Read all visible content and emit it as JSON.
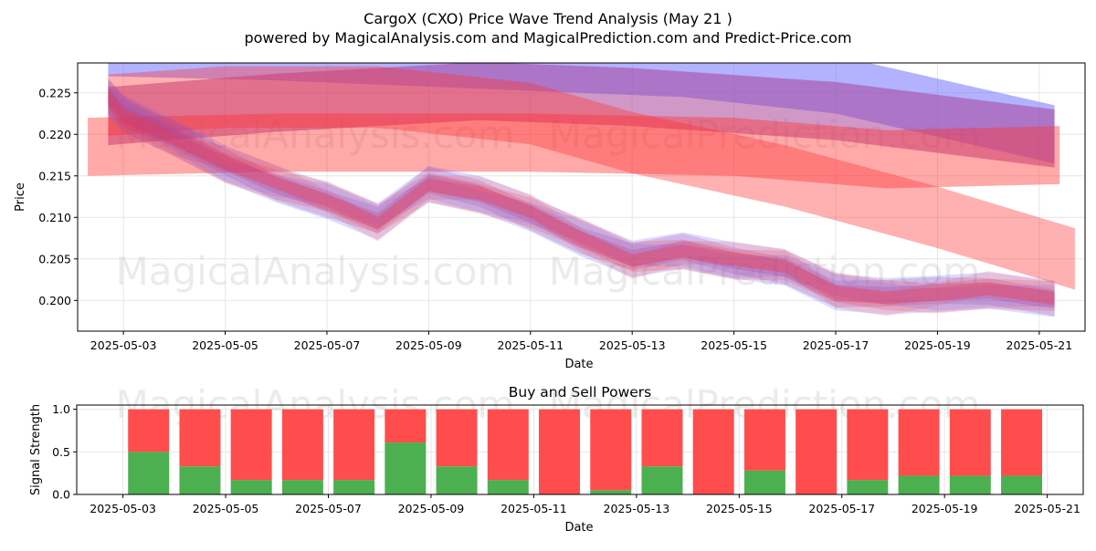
{
  "header": {
    "title": "CargoX (CXO) Price Wave Trend Analysis (May 21 )",
    "subtitle": "powered by MagicalAnalysis.com and MagicalPrediction.com and Predict-Price.com"
  },
  "watermarks": [
    "MagicalAnalysis.com",
    "MagicalPrediction.com"
  ],
  "colors": {
    "blue_band": "#6666ff",
    "red_band": "#ff3333",
    "purple_band": "#aa4499",
    "buy": "#4caf50",
    "sell": "#ff4d4d",
    "grid": "#e6e6e6"
  },
  "chart_data": [
    {
      "type": "line",
      "title": "",
      "xlabel": "Date",
      "ylabel": "Price",
      "ylim": [
        0.1963,
        0.2286
      ],
      "xlim": [
        "2025-05-02.1",
        "2025-05-21.9"
      ],
      "grid": true,
      "x_ticks": [
        "2025-05-03",
        "2025-05-05",
        "2025-05-07",
        "2025-05-09",
        "2025-05-11",
        "2025-05-13",
        "2025-05-15",
        "2025-05-17",
        "2025-05-19",
        "2025-05-21"
      ],
      "y_ticks": [
        "0.200",
        "0.205",
        "0.210",
        "0.215",
        "0.220",
        "0.225"
      ],
      "price_path": {
        "x": [
          "2025-05-02.7",
          "2025-05-03",
          "2025-05-04",
          "2025-05-05",
          "2025-05-06",
          "2025-05-07",
          "2025-05-08",
          "2025-05-09",
          "2025-05-10",
          "2025-05-11",
          "2025-05-12",
          "2025-05-13",
          "2025-05-14",
          "2025-05-15",
          "2025-05-16",
          "2025-05-17",
          "2025-05-18",
          "2025-05-19",
          "2025-05-20",
          "2025-05-21.3"
        ],
        "y": [
          0.2245,
          0.2225,
          0.2195,
          0.2165,
          0.214,
          0.212,
          0.2095,
          0.214,
          0.2128,
          0.2105,
          0.2075,
          0.205,
          0.206,
          0.2048,
          0.204,
          0.201,
          0.2005,
          0.2008,
          0.2012,
          0.2002
        ]
      },
      "bands": [
        {
          "kind": "long-term-blue",
          "x": [
            "2025-05-02.7",
            "2025-05-06",
            "2025-05-10",
            "2025-05-14",
            "2025-05-17",
            "2025-05-21.3"
          ],
          "y_center": [
            0.2305,
            0.23,
            0.229,
            0.228,
            0.226,
            0.22
          ],
          "half_width": 0.0035
        },
        {
          "kind": "long-term-purple",
          "x": [
            "2025-05-02.7",
            "2025-05-06",
            "2025-05-10",
            "2025-05-13",
            "2025-05-17",
            "2025-05-21.3"
          ],
          "y_center": [
            0.2222,
            0.2238,
            0.2252,
            0.2245,
            0.2228,
            0.2195
          ],
          "half_width": 0.0035
        },
        {
          "kind": "mid-term-red",
          "x": [
            "2025-05-02.7",
            "2025-05-05",
            "2025-05-08",
            "2025-05-11",
            "2025-05-13",
            "2025-05-16",
            "2025-05-19",
            "2025-05-21.7"
          ],
          "y_center": [
            0.2235,
            0.2245,
            0.2245,
            0.2225,
            0.219,
            0.215,
            0.21,
            0.205
          ],
          "half_width": 0.0037
        },
        {
          "kind": "mid-term-red-2",
          "x": [
            "2025-05-02.3",
            "2025-05-06",
            "2025-05-11",
            "2025-05-15",
            "2025-05-18",
            "2025-05-21.4"
          ],
          "y_center": [
            0.2185,
            0.219,
            0.219,
            0.2185,
            0.217,
            0.2175
          ],
          "half_width": 0.0035
        }
      ]
    },
    {
      "type": "bar",
      "title": "Buy and Sell Powers",
      "xlabel": "Date",
      "ylabel": "Signal Strength",
      "ylim": [
        0,
        1.05
      ],
      "grid": true,
      "x_ticks": [
        "2025-05-03",
        "2025-05-05",
        "2025-05-07",
        "2025-05-09",
        "2025-05-11",
        "2025-05-13",
        "2025-05-15",
        "2025-05-17",
        "2025-05-19",
        "2025-05-21"
      ],
      "y_ticks": [
        "0.0",
        "0.5",
        "1.0"
      ],
      "categories": [
        "2025-05-04",
        "2025-05-05",
        "2025-05-06",
        "2025-05-07",
        "2025-05-08",
        "2025-05-09",
        "2025-05-10",
        "2025-05-11",
        "2025-05-12",
        "2025-05-13",
        "2025-05-14",
        "2025-05-15",
        "2025-05-16",
        "2025-05-17",
        "2025-05-18",
        "2025-05-19",
        "2025-05-20",
        "2025-05-21"
      ],
      "series": [
        {
          "name": "Buy",
          "values": [
            0.5,
            0.33,
            0.17,
            0.17,
            0.17,
            0.61,
            0.33,
            0.17,
            0.0,
            0.05,
            0.33,
            0.0,
            0.28,
            0.0,
            0.17,
            0.22,
            0.22,
            0.22
          ]
        },
        {
          "name": "Sell",
          "values": [
            0.5,
            0.67,
            0.83,
            0.83,
            0.83,
            0.39,
            0.67,
            0.83,
            1.0,
            0.95,
            0.67,
            1.0,
            0.72,
            1.0,
            0.83,
            0.78,
            0.78,
            0.78
          ]
        }
      ]
    }
  ]
}
